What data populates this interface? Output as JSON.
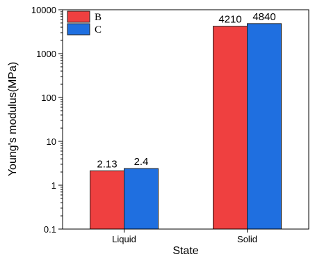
{
  "chart_data": {
    "type": "bar",
    "categories": [
      "Liquid",
      "Solid"
    ],
    "series": [
      {
        "name": "B",
        "values": [
          2.13,
          4210
        ],
        "labels": [
          "2.13",
          "4210"
        ],
        "color": "#ef4040"
      },
      {
        "name": "C",
        "values": [
          2.4,
          4840
        ],
        "labels": [
          "2.4",
          "4840"
        ],
        "color": "#1f6fe0"
      }
    ],
    "xlabel": "State",
    "ylabel": "Young's modulus(MPa)",
    "yscale": "log",
    "ylim": [
      0.1,
      10000
    ],
    "yticks": [
      {
        "value": 0.1,
        "label": "0.1"
      },
      {
        "value": 1,
        "label": "1"
      },
      {
        "value": 10,
        "label": "10"
      },
      {
        "value": 100,
        "label": "100"
      },
      {
        "value": 1000,
        "label": "1000"
      },
      {
        "value": 10000,
        "label": "10000"
      }
    ],
    "grid": false,
    "legend_position": "top-left"
  }
}
